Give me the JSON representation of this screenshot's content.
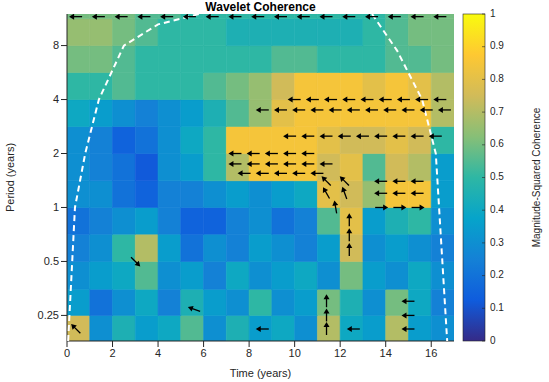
{
  "chart_data": {
    "type": "heatmap",
    "title": "Wavelet Coherence",
    "x_label": "Time (years)",
    "y_label": "Period (years)",
    "log": "y",
    "xlim": [
      0,
      17
    ],
    "xticks": [
      0,
      2,
      4,
      6,
      8,
      10,
      12,
      14,
      16
    ],
    "ylim": [
      0.18,
      12
    ],
    "yticks": [
      0.25,
      0.5,
      1,
      2,
      4,
      8
    ],
    "time_bins": [
      0,
      1,
      2,
      3,
      4,
      5,
      6,
      7,
      8,
      9,
      10,
      11,
      12,
      13,
      14,
      15,
      16,
      17
    ],
    "period_bins": [
      0.18,
      0.25,
      0.35,
      0.5,
      0.71,
      1,
      1.41,
      2,
      2.83,
      4,
      5.66,
      8,
      11.3,
      12
    ],
    "coherence": [
      [
        0.75,
        0.3,
        0.45,
        0.35,
        0.4,
        0.55,
        0.3,
        0.45,
        0.35,
        0.4,
        0.3,
        0.7,
        0.4,
        0.35,
        0.7,
        0.35,
        0.3
      ],
      [
        0.35,
        0.2,
        0.3,
        0.4,
        0.25,
        0.45,
        0.35,
        0.3,
        0.5,
        0.3,
        0.35,
        0.6,
        0.45,
        0.3,
        0.6,
        0.4,
        0.25
      ],
      [
        0.3,
        0.35,
        0.4,
        0.55,
        0.3,
        0.35,
        0.25,
        0.4,
        0.3,
        0.35,
        0.4,
        0.3,
        0.6,
        0.35,
        0.3,
        0.4,
        0.3
      ],
      [
        0.25,
        0.3,
        0.5,
        0.7,
        0.35,
        0.2,
        0.3,
        0.25,
        0.35,
        0.3,
        0.25,
        0.35,
        0.75,
        0.3,
        0.35,
        0.3,
        0.25
      ],
      [
        0.2,
        0.25,
        0.3,
        0.35,
        0.25,
        0.15,
        0.15,
        0.25,
        0.3,
        0.2,
        0.25,
        0.55,
        0.8,
        0.35,
        0.45,
        0.5,
        0.3
      ],
      [
        0.3,
        0.3,
        0.2,
        0.15,
        0.25,
        0.25,
        0.3,
        0.35,
        0.3,
        0.35,
        0.4,
        0.8,
        0.75,
        0.65,
        0.85,
        0.85,
        0.35
      ],
      [
        0.3,
        0.25,
        0.2,
        0.12,
        0.3,
        0.35,
        0.5,
        0.7,
        0.85,
        0.85,
        0.85,
        0.75,
        0.8,
        0.55,
        0.75,
        0.7,
        0.35
      ],
      [
        0.3,
        0.25,
        0.15,
        0.2,
        0.3,
        0.4,
        0.5,
        0.85,
        0.85,
        0.85,
        0.85,
        0.8,
        0.75,
        0.75,
        0.8,
        0.75,
        0.5
      ],
      [
        0.4,
        0.35,
        0.3,
        0.25,
        0.3,
        0.35,
        0.45,
        0.55,
        0.65,
        0.8,
        0.85,
        0.85,
        0.85,
        0.85,
        0.85,
        0.85,
        0.7
      ],
      [
        0.5,
        0.5,
        0.55,
        0.5,
        0.5,
        0.5,
        0.55,
        0.6,
        0.65,
        0.75,
        0.85,
        0.85,
        0.85,
        0.8,
        0.85,
        0.8,
        0.7
      ],
      [
        0.6,
        0.6,
        0.55,
        0.5,
        0.5,
        0.5,
        0.5,
        0.5,
        0.5,
        0.55,
        0.55,
        0.5,
        0.5,
        0.5,
        0.55,
        0.55,
        0.6
      ],
      [
        0.65,
        0.65,
        0.6,
        0.55,
        0.5,
        0.5,
        0.5,
        0.45,
        0.45,
        0.45,
        0.45,
        0.45,
        0.45,
        0.5,
        0.55,
        0.6,
        0.6
      ],
      [
        0.6,
        0.6,
        0.6,
        0.55,
        0.55,
        0.5,
        0.5,
        0.5,
        0.5,
        0.5,
        0.5,
        0.5,
        0.5,
        0.5,
        0.55,
        0.6,
        0.6
      ]
    ],
    "colorbar": {
      "label": "Magnitude-Squared Coherence",
      "range": [
        0,
        1
      ],
      "ticks": [
        0,
        0.1,
        0.2,
        0.3,
        0.4,
        0.5,
        0.6,
        0.7,
        0.8,
        0.9,
        1
      ]
    },
    "arrows": [
      {
        "time": 0.4,
        "period": 11.6,
        "phase": 180
      },
      {
        "time": 1.4,
        "period": 11.6,
        "phase": 180
      },
      {
        "time": 2.4,
        "period": 11.6,
        "phase": 180
      },
      {
        "time": 3.4,
        "period": 11.6,
        "phase": 180
      },
      {
        "time": 4.4,
        "period": 11.6,
        "phase": 180
      },
      {
        "time": 5.4,
        "period": 11.6,
        "phase": 180
      },
      {
        "time": 6.4,
        "period": 11.6,
        "phase": 180
      },
      {
        "time": 7.4,
        "period": 11.6,
        "phase": 180
      },
      {
        "time": 8.4,
        "period": 11.6,
        "phase": 180
      },
      {
        "time": 9.4,
        "period": 11.6,
        "phase": 180
      },
      {
        "time": 10.4,
        "period": 11.6,
        "phase": 180
      },
      {
        "time": 11.4,
        "period": 11.6,
        "phase": 180
      },
      {
        "time": 12.4,
        "period": 11.6,
        "phase": 180
      },
      {
        "time": 13.4,
        "period": 11.6,
        "phase": 180
      },
      {
        "time": 14.4,
        "period": 11.6,
        "phase": 180
      },
      {
        "time": 15.4,
        "period": 11.6,
        "phase": 180
      },
      {
        "time": 16.4,
        "period": 11.6,
        "phase": 180
      },
      {
        "time": 10.0,
        "period": 4,
        "phase": 180
      },
      {
        "time": 10.8,
        "period": 4,
        "phase": 180
      },
      {
        "time": 11.6,
        "period": 4,
        "phase": 180
      },
      {
        "time": 12.4,
        "period": 4,
        "phase": 180
      },
      {
        "time": 13.2,
        "period": 4,
        "phase": 180
      },
      {
        "time": 14.0,
        "period": 4,
        "phase": 180
      },
      {
        "time": 14.8,
        "period": 4,
        "phase": 180
      },
      {
        "time": 15.6,
        "period": 4,
        "phase": 180
      },
      {
        "time": 16.4,
        "period": 4,
        "phase": 180
      },
      {
        "time": 8.6,
        "period": 3.5,
        "phase": 180
      },
      {
        "time": 9.4,
        "period": 3.5,
        "phase": 180
      },
      {
        "time": 10.2,
        "period": 3.5,
        "phase": 180
      },
      {
        "time": 11.0,
        "period": 3.5,
        "phase": 180
      },
      {
        "time": 11.8,
        "period": 3.5,
        "phase": 180
      },
      {
        "time": 12.6,
        "period": 3.5,
        "phase": 180
      },
      {
        "time": 13.4,
        "period": 3.5,
        "phase": 180
      },
      {
        "time": 14.2,
        "period": 3.5,
        "phase": 180
      },
      {
        "time": 15.0,
        "period": 3.5,
        "phase": 180
      },
      {
        "time": 15.8,
        "period": 3.5,
        "phase": 180
      },
      {
        "time": 16.6,
        "period": 3.5,
        "phase": 180
      },
      {
        "time": 9.8,
        "period": 2.5,
        "phase": 180
      },
      {
        "time": 10.6,
        "period": 2.5,
        "phase": 180
      },
      {
        "time": 11.4,
        "period": 2.5,
        "phase": 180
      },
      {
        "time": 12.2,
        "period": 2.5,
        "phase": 180
      },
      {
        "time": 13.0,
        "period": 2.5,
        "phase": 180
      },
      {
        "time": 13.8,
        "period": 2.5,
        "phase": 180
      },
      {
        "time": 14.6,
        "period": 2.5,
        "phase": 180
      },
      {
        "time": 15.4,
        "period": 2.5,
        "phase": 180
      },
      {
        "time": 16.2,
        "period": 2.5,
        "phase": 180
      },
      {
        "time": 7.4,
        "period": 2,
        "phase": 180
      },
      {
        "time": 8.2,
        "period": 2,
        "phase": 180
      },
      {
        "time": 9.0,
        "period": 2,
        "phase": 180
      },
      {
        "time": 9.8,
        "period": 2,
        "phase": 180
      },
      {
        "time": 10.6,
        "period": 2,
        "phase": 180
      },
      {
        "time": 7.4,
        "period": 1.75,
        "phase": 180
      },
      {
        "time": 8.2,
        "period": 1.75,
        "phase": 180
      },
      {
        "time": 9.0,
        "period": 1.75,
        "phase": 180
      },
      {
        "time": 9.8,
        "period": 1.75,
        "phase": 180
      },
      {
        "time": 10.6,
        "period": 1.75,
        "phase": 180
      },
      {
        "time": 11.4,
        "period": 1.75,
        "phase": 180
      },
      {
        "time": 7.8,
        "period": 1.55,
        "phase": 180
      },
      {
        "time": 8.6,
        "period": 1.55,
        "phase": 180
      },
      {
        "time": 9.4,
        "period": 1.55,
        "phase": 180
      },
      {
        "time": 10.2,
        "period": 1.55,
        "phase": 180
      },
      {
        "time": 11.0,
        "period": 1.55,
        "phase": 180
      },
      {
        "time": 11.4,
        "period": 1.4,
        "phase": 135
      },
      {
        "time": 12.2,
        "period": 1.4,
        "phase": 135
      },
      {
        "time": 13.8,
        "period": 1.4,
        "phase": 180
      },
      {
        "time": 14.6,
        "period": 1.4,
        "phase": 180
      },
      {
        "time": 15.4,
        "period": 1.4,
        "phase": 180
      },
      {
        "time": 11.4,
        "period": 1.2,
        "phase": 120
      },
      {
        "time": 12.2,
        "period": 1.2,
        "phase": 110
      },
      {
        "time": 13.8,
        "period": 1.2,
        "phase": 180
      },
      {
        "time": 14.6,
        "period": 1.2,
        "phase": 180
      },
      {
        "time": 15.4,
        "period": 1.2,
        "phase": 180
      },
      {
        "time": 11.8,
        "period": 1.0,
        "phase": 100
      },
      {
        "time": 13.8,
        "period": 1.0,
        "phase": 0
      },
      {
        "time": 14.6,
        "period": 1.0,
        "phase": 0
      },
      {
        "time": 15.4,
        "period": 1.0,
        "phase": 0
      },
      {
        "time": 12.4,
        "period": 0.85,
        "phase": 90
      },
      {
        "time": 12.4,
        "period": 0.7,
        "phase": 90
      },
      {
        "time": 12.4,
        "period": 0.58,
        "phase": 90
      },
      {
        "time": 3.0,
        "period": 0.5,
        "phase": -45
      },
      {
        "time": 11.4,
        "period": 0.3,
        "phase": 90
      },
      {
        "time": 15.0,
        "period": 0.3,
        "phase": 180
      },
      {
        "time": 11.4,
        "period": 0.25,
        "phase": 90
      },
      {
        "time": 15.0,
        "period": 0.25,
        "phase": 180
      },
      {
        "time": 5.6,
        "period": 0.27,
        "phase": 160
      },
      {
        "time": 11.4,
        "period": 0.21,
        "phase": 90
      },
      {
        "time": 15.0,
        "period": 0.21,
        "phase": 180
      },
      {
        "time": 0.4,
        "period": 0.21,
        "phase": 135
      },
      {
        "time": 8.6,
        "period": 0.21,
        "phase": 180
      },
      {
        "time": 12.6,
        "period": 0.21,
        "phase": 180
      }
    ],
    "cone_of_influence": {
      "color": "#ffffff",
      "line_style": "dashed",
      "branches": [
        {
          "time": [
            0.05,
            0.35,
            0.8,
            1.4,
            2.5,
            4,
            5.8
          ],
          "period": [
            0.18,
            1,
            2,
            4,
            8,
            10.5,
            12
          ]
        },
        {
          "time": [
            13.4,
            14.5,
            15.6,
            16.2,
            16.7
          ],
          "period": [
            12,
            7.5,
            4,
            2,
            0.18
          ]
        }
      ]
    }
  }
}
